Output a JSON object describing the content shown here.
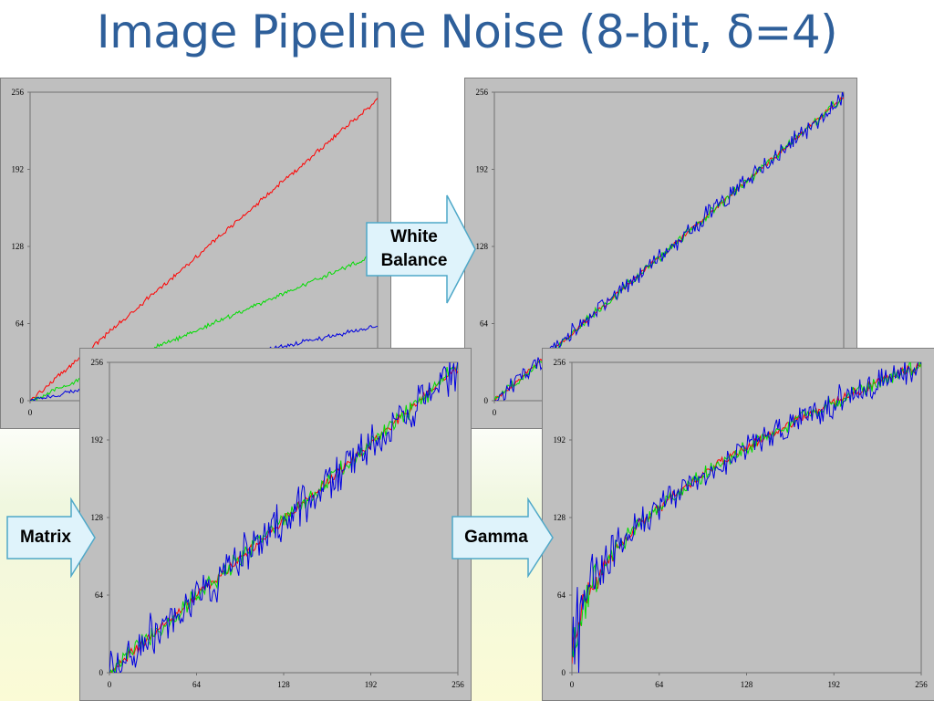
{
  "title": "Image Pipeline Noise (8-bit, δ=4)",
  "colors": {
    "title": "#2e5f9a",
    "panel_bg": "#bfbfbf",
    "arrow_fill": "#dff3fb",
    "arrow_stroke": "#4fa8c8",
    "red": "#ff0000",
    "green": "#00dd00",
    "blue": "#0000e0"
  },
  "arrows": {
    "white_balance": [
      "White",
      "Balance"
    ],
    "matrix": "Matrix",
    "gamma": "Gamma"
  },
  "chart_data": [
    {
      "type": "line",
      "xlim": [
        0,
        256
      ],
      "ylim": [
        0,
        256
      ],
      "x_ticks": [
        "0"
      ],
      "y_ticks": [
        "0",
        "64",
        "128",
        "192",
        "256"
      ],
      "series": [
        {
          "color": "red",
          "x": [
            0,
            256
          ],
          "y": [
            0,
            250
          ],
          "noise": 1.5
        },
        {
          "color": "green",
          "x": [
            0,
            256
          ],
          "y": [
            0,
            122
          ],
          "noise": 1.5
        },
        {
          "color": "blue",
          "x": [
            0,
            256
          ],
          "y": [
            0,
            62
          ],
          "noise": 1.5
        }
      ]
    },
    {
      "type": "line",
      "xlim": [
        0,
        256
      ],
      "ylim": [
        0,
        256
      ],
      "x_ticks": [
        "0"
      ],
      "y_ticks": [
        "0",
        "64",
        "128",
        "192",
        "256"
      ],
      "series": [
        {
          "color": "red",
          "x": [
            0,
            256
          ],
          "y": [
            0,
            252
          ],
          "noise": 1.5
        },
        {
          "color": "green",
          "x": [
            0,
            256
          ],
          "y": [
            0,
            252
          ],
          "noise": 3
        },
        {
          "color": "blue",
          "x": [
            0,
            256
          ],
          "y": [
            0,
            252
          ],
          "noise": 6
        }
      ]
    },
    {
      "type": "line",
      "xlim": [
        0,
        256
      ],
      "ylim": [
        0,
        256
      ],
      "x_ticks": [
        "0",
        "64",
        "128",
        "192",
        "256"
      ],
      "y_ticks": [
        "0",
        "64",
        "128",
        "192",
        "256"
      ],
      "series": [
        {
          "color": "red",
          "x": [
            0,
            256
          ],
          "y": [
            0,
            252
          ],
          "noise": 3
        },
        {
          "color": "green",
          "x": [
            0,
            256
          ],
          "y": [
            0,
            252
          ],
          "noise": 6
        },
        {
          "color": "blue",
          "x": [
            0,
            256
          ],
          "y": [
            0,
            252
          ],
          "noise": 14
        }
      ]
    },
    {
      "type": "line",
      "xlim": [
        0,
        256
      ],
      "ylim": [
        0,
        256
      ],
      "x_ticks": [
        "0",
        "64",
        "128",
        "192",
        "256"
      ],
      "y_ticks": [
        "0",
        "64",
        "128",
        "192",
        "256"
      ],
      "gamma": 0.45,
      "series": [
        {
          "color": "red",
          "x": [
            0,
            256
          ],
          "y": [
            0,
            254
          ],
          "noise": 3
        },
        {
          "color": "green",
          "x": [
            0,
            256
          ],
          "y": [
            0,
            254
          ],
          "noise": 5
        },
        {
          "color": "blue",
          "x": [
            0,
            256
          ],
          "y": [
            0,
            254
          ],
          "noise": 9
        }
      ]
    }
  ]
}
